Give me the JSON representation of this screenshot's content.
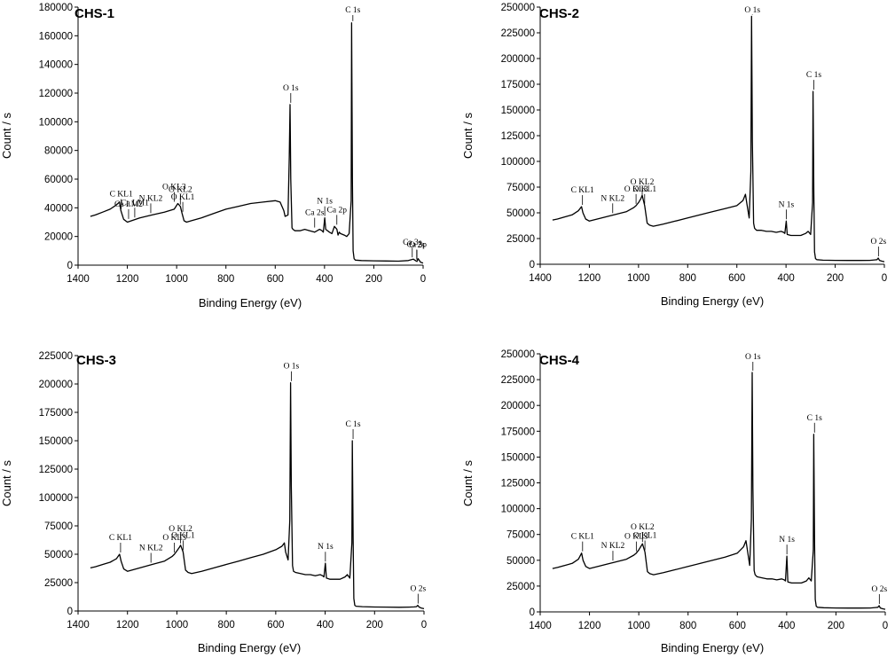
{
  "figure": {
    "panel_count": 4
  },
  "chart_data": [
    {
      "type": "line",
      "title": "CHS-1",
      "xlabel": "Binding Energy (eV)",
      "ylabel": "Count / s",
      "xlim": [
        1400,
        0
      ],
      "ylim": [
        0,
        180000
      ],
      "xticks": [
        1400,
        1200,
        1000,
        800,
        600,
        400,
        200,
        0
      ],
      "yticks": [
        0,
        20000,
        40000,
        60000,
        80000,
        100000,
        120000,
        140000,
        160000,
        180000
      ],
      "series": [
        {
          "name": "CHS-1",
          "x": [
            1350,
            1330,
            1300,
            1270,
            1245,
            1232,
            1226,
            1215,
            1200,
            1150,
            1100,
            1050,
            1010,
            995,
            985,
            978,
            970,
            960,
            940,
            900,
            850,
            800,
            750,
            700,
            650,
            600,
            580,
            565,
            560,
            548,
            543,
            540,
            537,
            532,
            528,
            520,
            500,
            480,
            460,
            440,
            420,
            410,
            405,
            399,
            395,
            380,
            370,
            360,
            350,
            345,
            340,
            335,
            320,
            310,
            300,
            292,
            290,
            287,
            284,
            280,
            275,
            250,
            200,
            150,
            100,
            60,
            40,
            30,
            25,
            20,
            10,
            0
          ],
          "y": [
            34000,
            35000,
            37000,
            39000,
            42000,
            44000,
            38000,
            32000,
            30000,
            33000,
            35000,
            37000,
            39000,
            43000,
            41000,
            36000,
            31000,
            30000,
            31000,
            33000,
            36000,
            39000,
            41000,
            43000,
            44000,
            45000,
            44000,
            38000,
            34000,
            35000,
            75000,
            112000,
            60000,
            26000,
            25000,
            24000,
            24000,
            25000,
            24000,
            23000,
            25000,
            24000,
            23000,
            33000,
            25000,
            23000,
            22000,
            27000,
            25000,
            21000,
            23000,
            22000,
            21000,
            20000,
            22000,
            45000,
            169000,
            60000,
            10000,
            4500,
            3500,
            3200,
            3000,
            2900,
            2800,
            3200,
            4200,
            3000,
            2600,
            4500,
            2000,
            1500
          ]
        }
      ],
      "annotations": [
        {
          "text": "C 1s",
          "x": 285,
          "y": 169000
        },
        {
          "text": "O 1s",
          "x": 537,
          "y": 112000
        },
        {
          "text": "O KL3",
          "x": 1010,
          "y": 43000
        },
        {
          "text": "O KL2",
          "x": 985,
          "y": 41000
        },
        {
          "text": "O KL1",
          "x": 975,
          "y": 36000
        },
        {
          "text": "N KL2",
          "x": 1105,
          "y": 35000
        },
        {
          "text": "Ca LM1",
          "x": 1170,
          "y": 32000
        },
        {
          "text": "Ca LM2",
          "x": 1195,
          "y": 31000
        },
        {
          "text": "C KL1",
          "x": 1225,
          "y": 38000
        },
        {
          "text": "N 1s",
          "x": 399,
          "y": 33000
        },
        {
          "text": "Ca 2s",
          "x": 440,
          "y": 25000
        },
        {
          "text": "Ca 2p",
          "x": 350,
          "y": 27000
        },
        {
          "text": "Ca 3s",
          "x": 44,
          "y": 4200
        },
        {
          "text": "O 2s",
          "x": 25,
          "y": 2600
        },
        {
          "text": "Ca 3p",
          "x": 26,
          "y": 2800
        }
      ]
    },
    {
      "type": "line",
      "title": "CHS-2",
      "xlabel": "Binding Energy (eV)",
      "ylabel": "Count / s",
      "xlim": [
        1400,
        0
      ],
      "ylim": [
        0,
        250000
      ],
      "xticks": [
        1400,
        1200,
        1000,
        800,
        600,
        400,
        200,
        0
      ],
      "yticks": [
        0,
        25000,
        50000,
        75000,
        100000,
        125000,
        150000,
        175000,
        200000,
        225000,
        250000
      ],
      "series": [
        {
          "name": "CHS-2",
          "x": [
            1350,
            1330,
            1300,
            1270,
            1245,
            1232,
            1226,
            1215,
            1200,
            1150,
            1100,
            1050,
            1020,
            1010,
            1000,
            990,
            985,
            975,
            965,
            955,
            940,
            900,
            850,
            800,
            750,
            700,
            650,
            600,
            575,
            565,
            560,
            550,
            543,
            540,
            537,
            532,
            528,
            520,
            500,
            480,
            460,
            440,
            420,
            410,
            405,
            399,
            395,
            380,
            360,
            340,
            320,
            310,
            300,
            292,
            290,
            287,
            284,
            280,
            275,
            250,
            200,
            150,
            100,
            60,
            40,
            30,
            25,
            20,
            10,
            0
          ],
          "y": [
            43000,
            44000,
            46000,
            48000,
            52000,
            56000,
            50000,
            44000,
            42000,
            45000,
            48000,
            51000,
            55000,
            57000,
            60000,
            64000,
            67000,
            57000,
            40000,
            38000,
            37000,
            39000,
            42000,
            45000,
            48000,
            51000,
            54000,
            57000,
            62000,
            68000,
            60000,
            45000,
            90000,
            241000,
            120000,
            40000,
            35000,
            33000,
            33000,
            32000,
            32000,
            31000,
            32000,
            31000,
            30000,
            42000,
            29000,
            28000,
            28000,
            28000,
            30000,
            32000,
            29000,
            60000,
            168000,
            70000,
            12000,
            5500,
            4500,
            4000,
            3800,
            3700,
            3700,
            3800,
            4200,
            4500,
            6000,
            3800,
            3000,
            2500
          ]
        }
      ],
      "annotations": [
        {
          "text": "O 1s",
          "x": 537,
          "y": 241000
        },
        {
          "text": "C 1s",
          "x": 287,
          "y": 168000
        },
        {
          "text": "N 1s",
          "x": 399,
          "y": 42000
        },
        {
          "text": "O KL3",
          "x": 1010,
          "y": 57000
        },
        {
          "text": "O KL2",
          "x": 985,
          "y": 64000
        },
        {
          "text": "O KL1",
          "x": 975,
          "y": 57000
        },
        {
          "text": "N KL2",
          "x": 1105,
          "y": 48000
        },
        {
          "text": "C KL1",
          "x": 1228,
          "y": 56000
        },
        {
          "text": "O 2s",
          "x": 24,
          "y": 6000
        }
      ]
    },
    {
      "type": "line",
      "title": "CHS-3",
      "xlabel": "Binding Energy (eV)",
      "ylabel": "Count / s",
      "xlim": [
        1400,
        0
      ],
      "ylim": [
        0,
        225000
      ],
      "xticks": [
        1400,
        1200,
        1000,
        800,
        600,
        400,
        200,
        0
      ],
      "yticks": [
        0,
        25000,
        50000,
        75000,
        100000,
        125000,
        150000,
        175000,
        200000,
        225000
      ],
      "series": [
        {
          "name": "CHS-3",
          "x": [
            1350,
            1330,
            1300,
            1270,
            1245,
            1232,
            1226,
            1215,
            1200,
            1150,
            1100,
            1050,
            1020,
            1010,
            1000,
            990,
            985,
            975,
            965,
            955,
            940,
            900,
            850,
            800,
            750,
            700,
            650,
            600,
            575,
            565,
            560,
            550,
            543,
            540,
            537,
            532,
            528,
            520,
            500,
            480,
            460,
            440,
            420,
            410,
            405,
            399,
            395,
            380,
            360,
            340,
            320,
            310,
            300,
            292,
            290,
            287,
            284,
            280,
            275,
            250,
            200,
            150,
            100,
            60,
            40,
            30,
            25,
            20,
            10,
            0
          ],
          "y": [
            38000,
            39000,
            41000,
            43000,
            46000,
            50000,
            44000,
            37000,
            35000,
            38000,
            41000,
            44000,
            48000,
            50000,
            53000,
            56000,
            58000,
            52000,
            36000,
            34000,
            33000,
            35000,
            38000,
            41000,
            44000,
            47000,
            50000,
            54000,
            57000,
            60000,
            52000,
            45000,
            80000,
            201000,
            110000,
            40000,
            35000,
            34000,
            33000,
            32000,
            32000,
            31000,
            32000,
            31000,
            30000,
            42000,
            29000,
            28000,
            28000,
            28000,
            30000,
            32000,
            29000,
            60000,
            150000,
            65000,
            11000,
            5000,
            4200,
            3800,
            3500,
            3400,
            3300,
            3400,
            3600,
            3800,
            5000,
            3500,
            2500,
            2000
          ]
        }
      ],
      "annotations": [
        {
          "text": "O 1s",
          "x": 537,
          "y": 201000
        },
        {
          "text": "C 1s",
          "x": 287,
          "y": 150000
        },
        {
          "text": "N 1s",
          "x": 399,
          "y": 42000
        },
        {
          "text": "O KL3",
          "x": 1010,
          "y": 50000
        },
        {
          "text": "O KL2",
          "x": 985,
          "y": 58000
        },
        {
          "text": "O KL1",
          "x": 975,
          "y": 52000
        },
        {
          "text": "N KL2",
          "x": 1105,
          "y": 41000
        },
        {
          "text": "C KL1",
          "x": 1228,
          "y": 50000
        },
        {
          "text": "O 2s",
          "x": 24,
          "y": 5000
        }
      ]
    },
    {
      "type": "line",
      "title": "CHS-4",
      "xlabel": "Binding Energy (eV)",
      "ylabel": "Count / s",
      "xlim": [
        1400,
        0
      ],
      "ylim": [
        0,
        250000
      ],
      "xticks": [
        1400,
        1200,
        1000,
        800,
        600,
        400,
        200,
        0
      ],
      "yticks": [
        0,
        25000,
        50000,
        75000,
        100000,
        125000,
        150000,
        175000,
        200000,
        225000,
        250000
      ],
      "series": [
        {
          "name": "CHS-4",
          "x": [
            1350,
            1330,
            1300,
            1270,
            1245,
            1232,
            1226,
            1215,
            1200,
            1150,
            1100,
            1050,
            1020,
            1010,
            1000,
            990,
            985,
            975,
            965,
            955,
            940,
            900,
            850,
            800,
            750,
            700,
            650,
            600,
            575,
            565,
            560,
            550,
            543,
            540,
            537,
            532,
            528,
            520,
            500,
            480,
            460,
            440,
            420,
            410,
            405,
            399,
            395,
            380,
            360,
            340,
            320,
            310,
            300,
            292,
            290,
            287,
            284,
            280,
            275,
            250,
            200,
            150,
            100,
            60,
            40,
            30,
            25,
            20,
            10,
            0
          ],
          "y": [
            42000,
            43000,
            45000,
            47000,
            51000,
            57000,
            50000,
            44000,
            42000,
            45000,
            48000,
            51000,
            55000,
            57000,
            60000,
            64000,
            66000,
            58000,
            39000,
            37000,
            36000,
            38000,
            41000,
            44000,
            47000,
            50000,
            53000,
            57000,
            63000,
            69000,
            61000,
            45000,
            90000,
            232000,
            120000,
            40000,
            36000,
            34000,
            33000,
            32000,
            32000,
            31000,
            32000,
            31000,
            30000,
            54000,
            29000,
            28000,
            28000,
            28000,
            30000,
            33000,
            30000,
            60000,
            172000,
            70000,
            12000,
            5500,
            4500,
            4000,
            3800,
            3700,
            3700,
            3800,
            4200,
            4500,
            6000,
            3800,
            3000,
            2500
          ]
        }
      ],
      "annotations": [
        {
          "text": "O 1s",
          "x": 537,
          "y": 232000
        },
        {
          "text": "C 1s",
          "x": 287,
          "y": 172000
        },
        {
          "text": "N 1s",
          "x": 399,
          "y": 54000
        },
        {
          "text": "O KL3",
          "x": 1010,
          "y": 57000
        },
        {
          "text": "O KL2",
          "x": 985,
          "y": 66000
        },
        {
          "text": "O KL1",
          "x": 975,
          "y": 58000
        },
        {
          "text": "N KL2",
          "x": 1105,
          "y": 48000
        },
        {
          "text": "C KL1",
          "x": 1228,
          "y": 57000
        },
        {
          "text": "O 2s",
          "x": 24,
          "y": 6000
        }
      ]
    }
  ]
}
